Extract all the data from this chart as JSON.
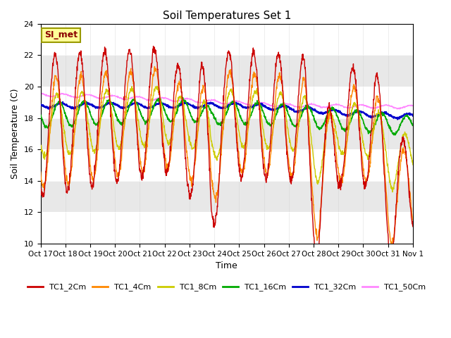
{
  "title": "Soil Temperatures Set 1",
  "xlabel": "Time",
  "ylabel": "Soil Temperature (C)",
  "ylim": [
    10,
    24
  ],
  "xlim": [
    0,
    360
  ],
  "series_colors": {
    "TC1_2Cm": "#cc0000",
    "TC1_4Cm": "#ff8800",
    "TC1_8Cm": "#cccc00",
    "TC1_16Cm": "#00aa00",
    "TC1_32Cm": "#0000cc",
    "TC1_50Cm": "#ff88ff"
  },
  "xtick_positions": [
    0,
    24,
    48,
    72,
    96,
    120,
    144,
    168,
    192,
    216,
    240,
    264,
    288,
    312,
    336,
    360
  ],
  "xtick_labels": [
    "Oct 17",
    "Oct 18",
    "Oct 19",
    "Oct 20",
    "Oct 21",
    "Oct 22",
    "Oct 23",
    "Oct 24",
    "Oct 25",
    "Oct 26",
    "Oct 27",
    "Oct 28",
    "Oct 29",
    "Oct 30",
    "Oct 31",
    "Nov 1"
  ],
  "ytick_positions": [
    10,
    12,
    14,
    16,
    18,
    20,
    22,
    24
  ],
  "background_color": "#ffffff",
  "plot_bg_color": "#e8e8e8",
  "grid_color": "#ffffff",
  "si_met_label": "SI_met",
  "legend_labels": [
    "TC1_2Cm",
    "TC1_4Cm",
    "TC1_8Cm",
    "TC1_16Cm",
    "TC1_32Cm",
    "TC1_50Cm"
  ]
}
